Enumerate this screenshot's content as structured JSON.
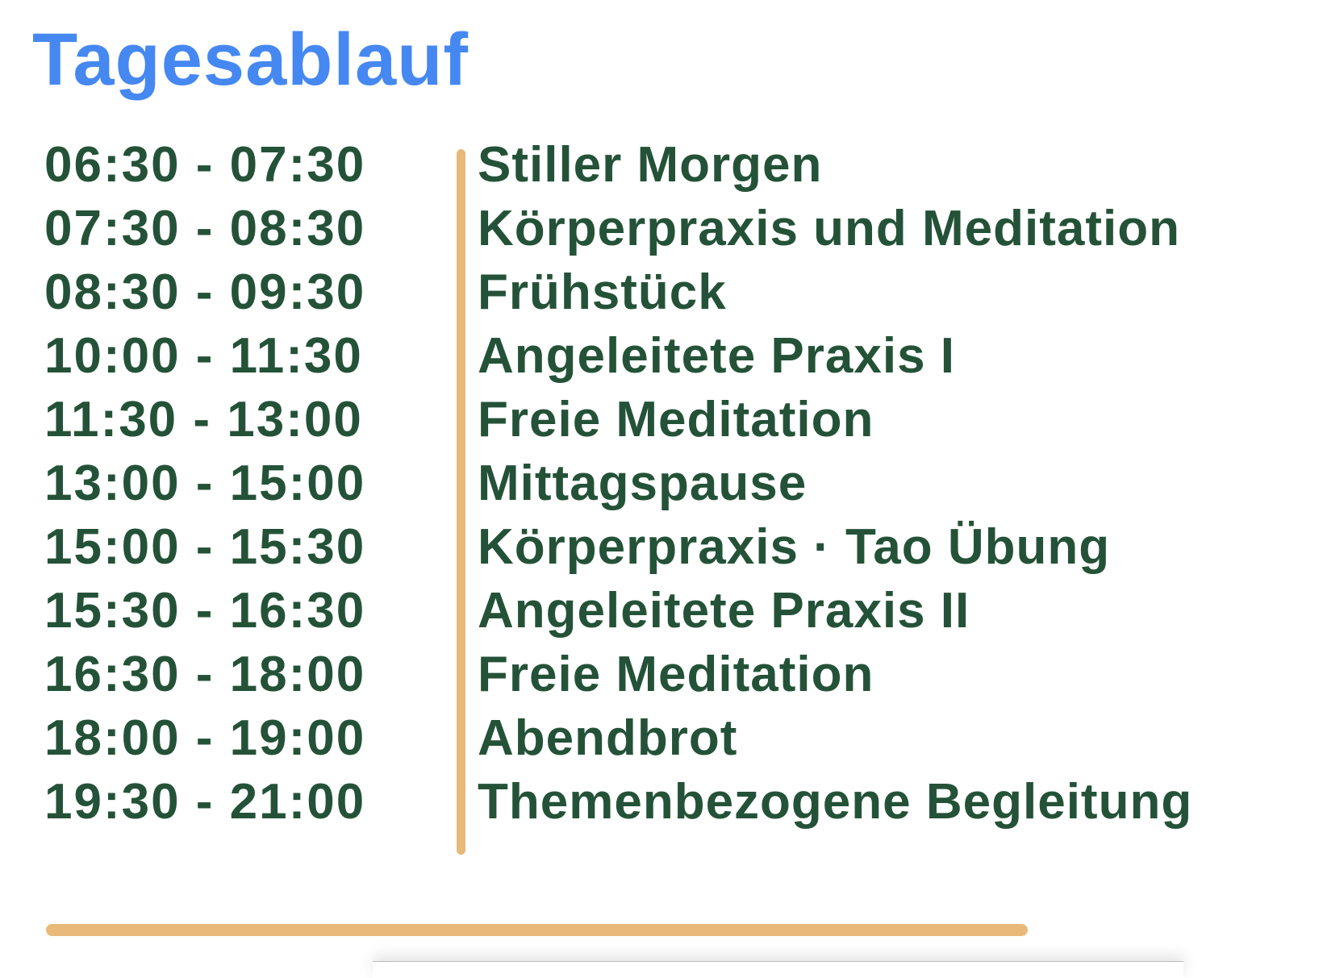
{
  "title": "Tagesablauf",
  "colors": {
    "title": "#4688f1",
    "text": "#245238",
    "accent": "#e8b978"
  },
  "schedule": [
    {
      "time": "06:30 - 07:30",
      "activity": "Stiller Morgen"
    },
    {
      "time": "07:30 - 08:30",
      "activity": "Körperpraxis und Meditation"
    },
    {
      "time": "08:30 - 09:30",
      "activity": "Frühstück"
    },
    {
      "time": "10:00 - 11:30",
      "activity": "Angeleitete Praxis I"
    },
    {
      "time": "11:30 - 13:00",
      "activity": "Freie Meditation"
    },
    {
      "time": "13:00 - 15:00",
      "activity": "Mittagspause"
    },
    {
      "time": "15:00 - 15:30",
      "activity": "Körperpraxis · Tao Übung"
    },
    {
      "time": "15:30 - 16:30",
      "activity": "Angeleitete Praxis II"
    },
    {
      "time": "16:30 - 18:00",
      "activity": "Freie Meditation"
    },
    {
      "time": "18:00 - 19:00",
      "activity": "Abendbrot"
    },
    {
      "time": "19:30 - 21:00",
      "activity": "Themenbezogene Begleitung"
    }
  ]
}
